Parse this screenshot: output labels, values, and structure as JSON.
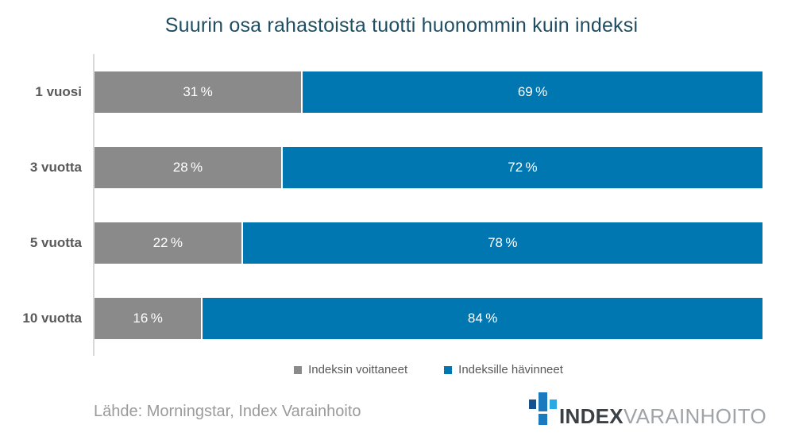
{
  "chart_data": {
    "type": "bar",
    "orientation": "horizontal-stacked",
    "title": "Suurin osa rahastoista tuotti huonommin kuin indeksi",
    "categories": [
      "1 vuosi",
      "3 vuotta",
      "5 vuotta",
      "10 vuotta"
    ],
    "series": [
      {
        "name": "Indeksin voittaneet",
        "color": "#8a8a8a",
        "values": [
          31,
          28,
          22,
          16
        ]
      },
      {
        "name": "Indeksille hävinneet",
        "color": "#0077b0",
        "values": [
          69,
          72,
          78,
          84
        ]
      }
    ],
    "value_labels": [
      [
        "31 %",
        "69 %"
      ],
      [
        "28 %",
        "72 %"
      ],
      [
        "22 %",
        "78 %"
      ],
      [
        "16 %",
        "84 %"
      ]
    ],
    "xlim": [
      0,
      100
    ],
    "grid": false,
    "legend_position": "bottom-center",
    "title_color": "#1f4e63",
    "axis_line_color": "#d9d9d9",
    "category_label_color": "#595959"
  },
  "source": {
    "text": "Lähde: Morningstar, Index Varainhoito"
  },
  "logo": {
    "text_bold": "INDEX",
    "text_light": "VARAINHOITO",
    "icon_colors": {
      "left": "#17528c",
      "center": "#1b79be",
      "right": "#2baae1",
      "bottom": "#1b79be"
    }
  }
}
